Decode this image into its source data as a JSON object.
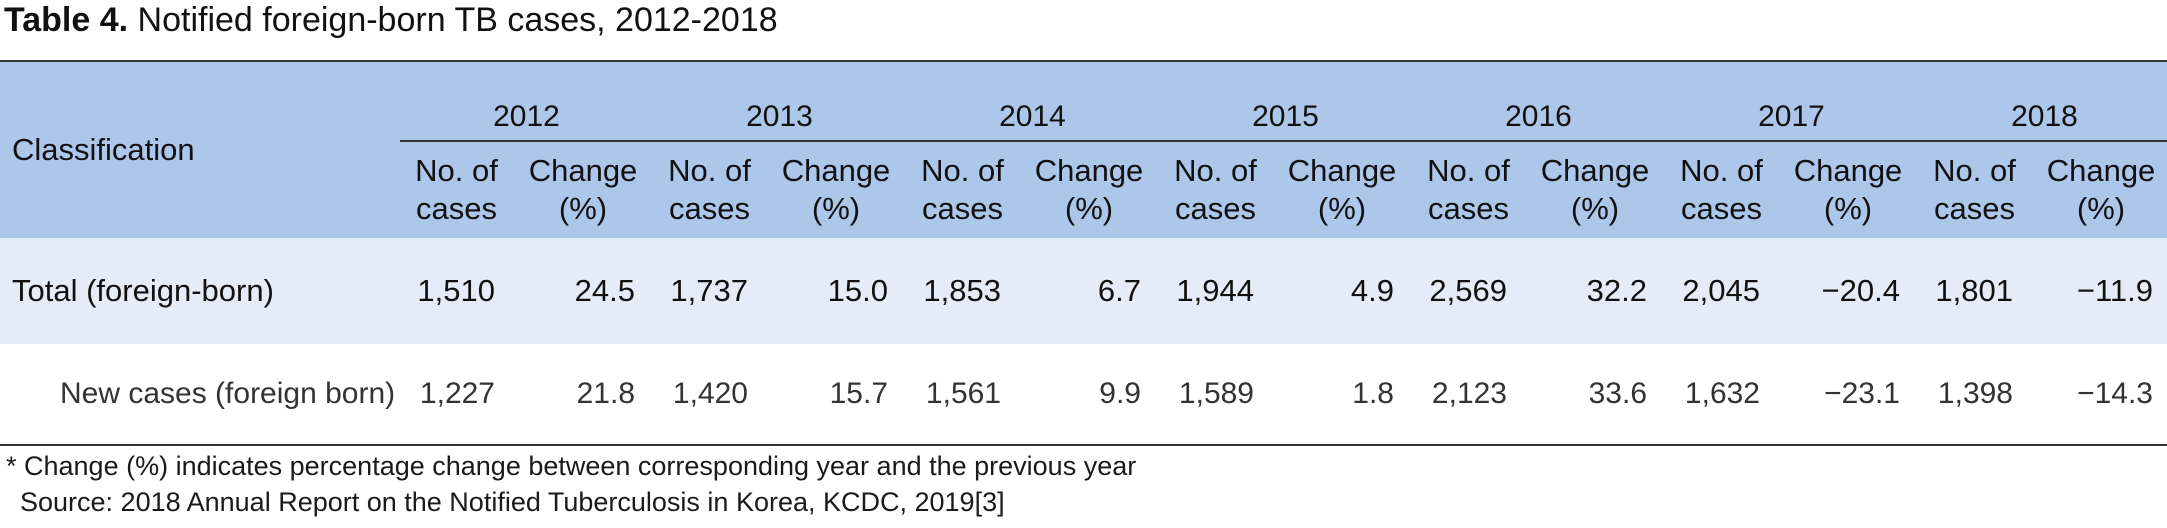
{
  "title": {
    "label": "Table 4.",
    "text": "Notified foreign-born TB cases, 2012-2018"
  },
  "header": {
    "classification": "Classification",
    "years": [
      "2012",
      "2013",
      "2014",
      "2015",
      "2016",
      "2017",
      "2018"
    ],
    "cases_label": "No. of cases",
    "change_label": "Change (%)"
  },
  "rows": [
    {
      "name": "Total (foreign-born)",
      "cells": [
        [
          "1,510",
          "24.5"
        ],
        [
          "1,737",
          "15.0"
        ],
        [
          "1,853",
          "6.7"
        ],
        [
          "1,944",
          "4.9"
        ],
        [
          "2,569",
          "32.2"
        ],
        [
          "2,045",
          "−20.4"
        ],
        [
          "1,801",
          "−11.9"
        ]
      ]
    },
    {
      "name": "New cases (foreign born)",
      "cells": [
        [
          "1,227",
          "21.8"
        ],
        [
          "1,420",
          "15.7"
        ],
        [
          "1,561",
          "9.9"
        ],
        [
          "1,589",
          "1.8"
        ],
        [
          "2,123",
          "33.6"
        ],
        [
          "1,632",
          "−23.1"
        ],
        [
          "1,398",
          "−14.3"
        ]
      ]
    }
  ],
  "notes": {
    "footnote": "* Change (%) indicates percentage change between corresponding year and the previous year",
    "source": "Source: 2018 Annual Report on the Notified Tuberculosis in Korea, KCDC, 2019[3]"
  }
}
